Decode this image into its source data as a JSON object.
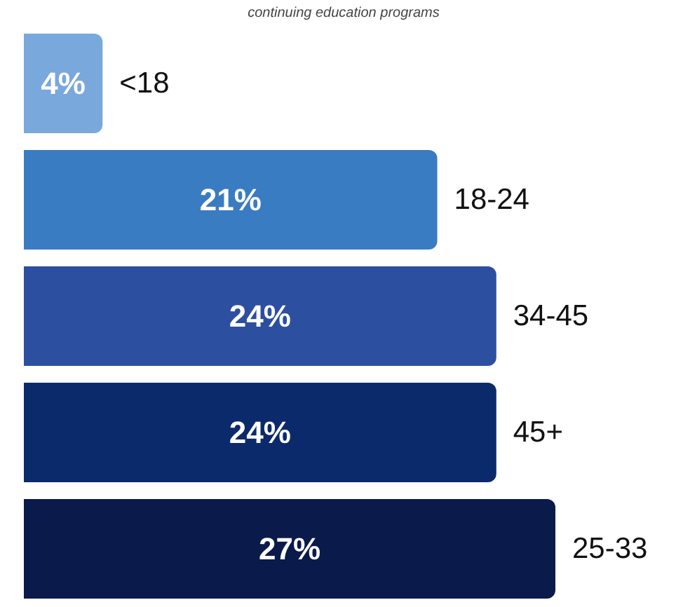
{
  "chart_data": {
    "type": "bar",
    "orientation": "horizontal",
    "subtitle": "continuing education programs",
    "categories": [
      "<18",
      "18-24",
      "34-45",
      "45+",
      "25-33"
    ],
    "values": [
      4,
      21,
      24,
      24,
      27
    ],
    "value_labels": [
      "4%",
      "21%",
      "24%",
      "24%",
      "27%"
    ],
    "colors": [
      "#78a8dc",
      "#3a7cc2",
      "#2d4fa0",
      "#0b2a6b",
      "#0a1a4a"
    ],
    "grid": false,
    "legend": false
  }
}
